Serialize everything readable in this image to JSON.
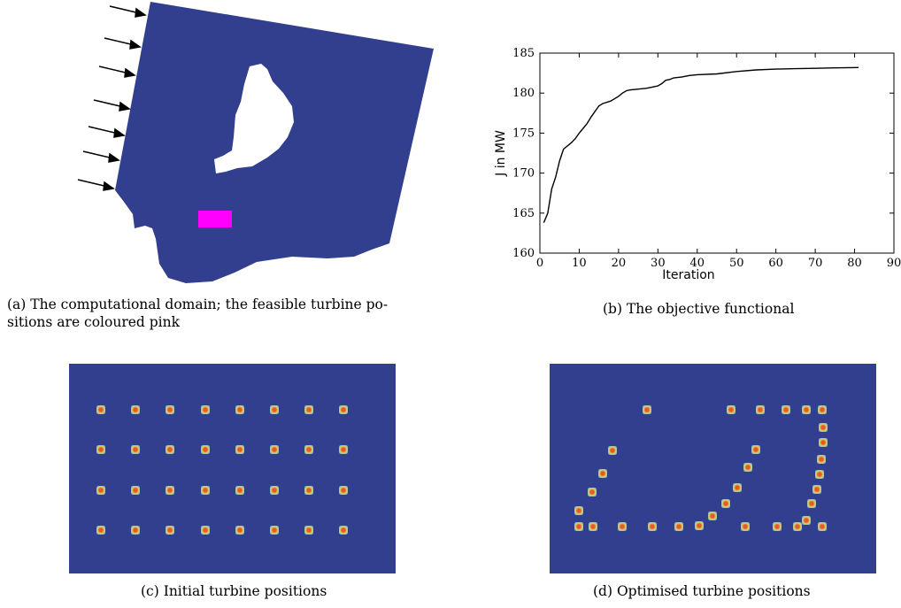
{
  "colors": {
    "domain_blue": "#323e8e",
    "feasible_pink": "#ff00ff",
    "turbine_core": "#e85a2a",
    "turbine_halo": "#d6d86a"
  },
  "captions": {
    "a_line1": "(a) The computational domain; the feasible turbine po-",
    "a_line2": "sitions are coloured pink",
    "b": "(b) The objective functional",
    "c": "(c) Initial turbine positions",
    "d": "(d) Optimised turbine positions"
  },
  "chart_data": {
    "type": "line",
    "xlabel": "Iteration",
    "ylabel": "J in MW",
    "xlim": [
      0,
      90
    ],
    "ylim": [
      160,
      185
    ],
    "xticks": [
      0,
      10,
      20,
      30,
      40,
      50,
      60,
      70,
      80,
      90
    ],
    "yticks": [
      160,
      165,
      170,
      175,
      180,
      185
    ],
    "grid": false,
    "series": [
      {
        "x": [
          1,
          2,
          3,
          4,
          5,
          6,
          8,
          9,
          10,
          11,
          12,
          13,
          14,
          15,
          16,
          18,
          20,
          21,
          22,
          23,
          25,
          27,
          28,
          30,
          31,
          32,
          33,
          34,
          36,
          38,
          40,
          45,
          50,
          55,
          60,
          65,
          70,
          75,
          81
        ],
        "y": [
          163.8,
          165.0,
          168.0,
          169.5,
          171.5,
          173.0,
          173.8,
          174.3,
          175.0,
          175.6,
          176.2,
          177.0,
          177.7,
          178.4,
          178.7,
          179.0,
          179.6,
          180.0,
          180.3,
          180.4,
          180.5,
          180.6,
          180.7,
          180.9,
          181.2,
          181.6,
          181.7,
          181.9,
          182.0,
          182.2,
          182.3,
          182.4,
          182.7,
          182.9,
          183.0,
          183.05,
          183.1,
          183.15,
          183.2
        ]
      }
    ]
  },
  "initial_turbines": {
    "columns": 8,
    "rows": 4
  },
  "optimised_turbine_count": 32
}
